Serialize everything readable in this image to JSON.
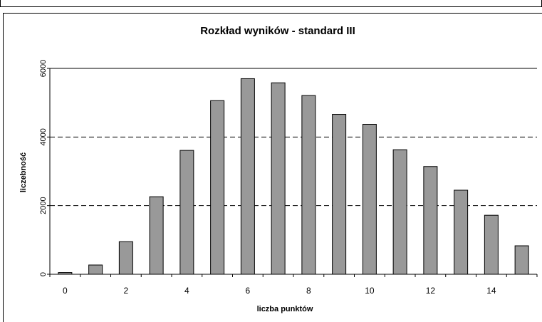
{
  "chart_data": {
    "type": "bar",
    "title": "Rozkład wyników - standard III",
    "xlabel": "liczba punktów",
    "ylabel": "liczebność",
    "categories": [
      "0",
      "1",
      "2",
      "3",
      "4",
      "5",
      "6",
      "7",
      "8",
      "9",
      "10",
      "11",
      "12",
      "13",
      "14",
      "15"
    ],
    "x_tick_labels": [
      "0",
      "2",
      "4",
      "6",
      "8",
      "10",
      "12",
      "14"
    ],
    "y_tick_labels": [
      "0",
      "2000",
      "4000",
      "6000"
    ],
    "values": [
      50,
      270,
      950,
      2260,
      3610,
      5060,
      5700,
      5580,
      5210,
      4660,
      4370,
      3630,
      3140,
      2450,
      1720,
      830
    ],
    "ylim": [
      0,
      6000
    ],
    "grid": "dashed horizontal",
    "bar_color": "#999999"
  }
}
